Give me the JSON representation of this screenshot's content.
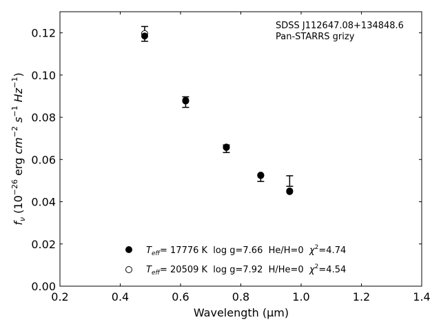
{
  "chart_data": {
    "type": "scatter",
    "xlabel": "Wavelength (μm)",
    "ylabel_parts": {
      "f": "f",
      "nu": "ν",
      "open": " (10",
      "exp_scale": "−26",
      "erg": " erg ",
      "cm": "cm",
      "exp_cm": "−2",
      "s": " s",
      "exp_s": "−1",
      "hz": " Hz",
      "exp_hz": "−1",
      "close": ")"
    },
    "xlim": [
      0.2,
      1.4
    ],
    "ylim": [
      0.0,
      0.13
    ],
    "xticks": [
      0.2,
      0.4,
      0.6,
      0.8,
      1.0,
      1.2,
      1.4
    ],
    "xtick_labels": [
      "0.2",
      "0.4",
      "0.6",
      "0.8",
      "1.0",
      "1.2",
      "1.4"
    ],
    "yticks": [
      0.0,
      0.02,
      0.04,
      0.06,
      0.08,
      0.1,
      0.12
    ],
    "ytick_labels": [
      "0.00",
      "0.02",
      "0.04",
      "0.06",
      "0.08",
      "0.10",
      "0.12"
    ],
    "grid": false,
    "annotation": {
      "line1": "SDSS J112647.08+134848.6",
      "line2": "Pan-STARRS grizy"
    },
    "observed": {
      "x": [
        0.481,
        0.617,
        0.752,
        0.866,
        0.962
      ],
      "y": [
        0.1195,
        0.0872,
        0.0651,
        0.0511,
        0.0498
      ],
      "yerr": [
        0.0035,
        0.0025,
        0.0018,
        0.0015,
        0.0025
      ]
    },
    "series": [
      {
        "marker": "filled-circle",
        "x": [
          0.481,
          0.617,
          0.752,
          0.866,
          0.962
        ],
        "y": [
          0.1185,
          0.0877,
          0.0657,
          0.0524,
          0.0448
        ]
      },
      {
        "marker": "open-circle",
        "x": [
          0.481,
          0.617,
          0.752,
          0.866,
          0.962
        ],
        "y": [
          0.1196,
          0.088,
          0.0659,
          0.0526,
          0.0451
        ]
      }
    ],
    "legend": {
      "placement": "lower-center",
      "entries": [
        {
          "marker": "filled-circle",
          "T": "T",
          "eff": "eff",
          "rest": "= 17776 K  log g=7.66  He/H=0  ",
          "chi": "χ",
          "chi_exp": "2",
          "chi_val": "=4.74"
        },
        {
          "marker": "open-circle",
          "T": "T",
          "eff": "eff",
          "rest": "= 20509 K  log g=7.92  H/He=0  ",
          "chi": "χ",
          "chi_exp": "2",
          "chi_val": "=4.54"
        }
      ]
    }
  }
}
